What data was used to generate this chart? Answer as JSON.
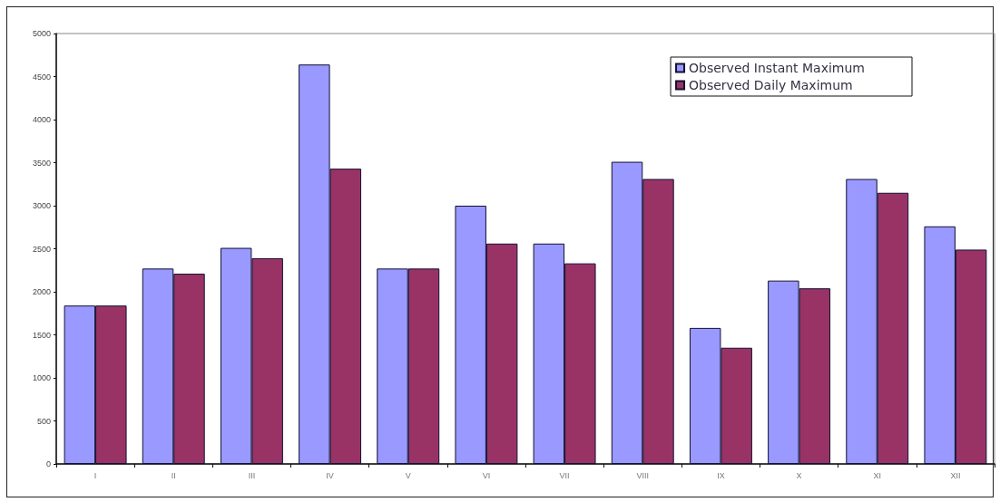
{
  "chart_data": {
    "type": "bar",
    "categories": [
      "I",
      "II",
      "III",
      "IV",
      "V",
      "VI",
      "VII",
      "VIII",
      "IX",
      "X",
      "XI",
      "XII"
    ],
    "series": [
      {
        "name": "Observed Instant Maximum",
        "color": "#9999ff",
        "values": [
          1840,
          2270,
          2510,
          4640,
          2270,
          3000,
          2560,
          3510,
          1580,
          2130,
          3310,
          2760
        ]
      },
      {
        "name": "Observed Daily Maximum",
        "color": "#993366",
        "values": [
          1840,
          2210,
          2390,
          3430,
          2270,
          2560,
          2330,
          3310,
          1350,
          2040,
          3150,
          2490
        ]
      }
    ],
    "ylim": [
      0,
      5000
    ],
    "yticks": [
      0,
      500,
      1000,
      1500,
      2000,
      2500,
      3000,
      3500,
      4000,
      4500,
      5000
    ],
    "legend": "top right"
  }
}
